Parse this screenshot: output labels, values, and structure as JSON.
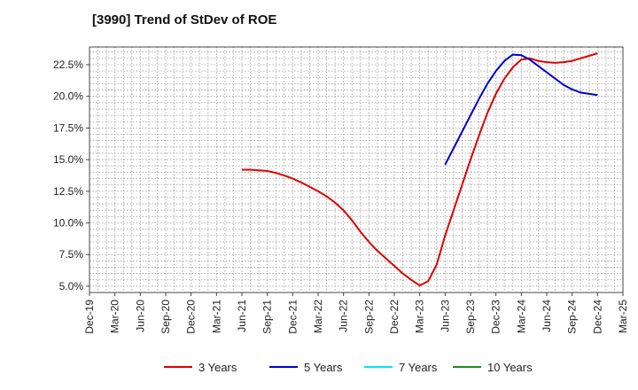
{
  "chart_data": {
    "type": "line",
    "title": "[3990]  Trend of StDev of ROE",
    "xlabel": "",
    "ylabel": "",
    "x_ticks": [
      "Dec-19",
      "Mar-20",
      "Jun-20",
      "Sep-20",
      "Dec-20",
      "Mar-21",
      "Jun-21",
      "Sep-21",
      "Dec-21",
      "Mar-22",
      "Jun-22",
      "Sep-22",
      "Dec-22",
      "Mar-23",
      "Jun-23",
      "Sep-23",
      "Dec-23",
      "Mar-24",
      "Jun-24",
      "Sep-24",
      "Dec-24",
      "Mar-25"
    ],
    "y_ticks": [
      5.0,
      7.5,
      10.0,
      12.5,
      15.0,
      17.5,
      20.0,
      22.5
    ],
    "y_tick_labels": [
      "5.0%",
      "7.5%",
      "10.0%",
      "12.5%",
      "15.0%",
      "17.5%",
      "20.0%",
      "22.5%"
    ],
    "ylim": [
      4.5,
      23.9
    ],
    "grid": true,
    "legend_position": "bottom",
    "series": [
      {
        "name": "3 Years",
        "color": "#dd0000",
        "points": [
          [
            "Jun-21",
            14.2
          ],
          [
            "Jul-21",
            14.2
          ],
          [
            "Aug-21",
            14.15
          ],
          [
            "Sep-21",
            14.1
          ],
          [
            "Oct-21",
            13.95
          ],
          [
            "Nov-21",
            13.75
          ],
          [
            "Dec-21",
            13.5
          ],
          [
            "Jan-22",
            13.2
          ],
          [
            "Feb-22",
            12.85
          ],
          [
            "Mar-22",
            12.5
          ],
          [
            "Apr-22",
            12.1
          ],
          [
            "May-22",
            11.6
          ],
          [
            "Jun-22",
            11.0
          ],
          [
            "Jul-22",
            10.2
          ],
          [
            "Aug-22",
            9.3
          ],
          [
            "Sep-22",
            8.5
          ],
          [
            "Oct-22",
            7.8
          ],
          [
            "Nov-22",
            7.2
          ],
          [
            "Dec-22",
            6.6
          ],
          [
            "Jan-23",
            6.0
          ],
          [
            "Feb-23",
            5.5
          ],
          [
            "Mar-23",
            5.05
          ],
          [
            "Apr-23",
            5.4
          ],
          [
            "May-23",
            6.7
          ],
          [
            "Jun-23",
            9.0
          ],
          [
            "Jul-23",
            11.0
          ],
          [
            "Aug-23",
            13.0
          ],
          [
            "Sep-23",
            15.0
          ],
          [
            "Oct-23",
            16.9
          ],
          [
            "Nov-23",
            18.7
          ],
          [
            "Dec-23",
            20.2
          ],
          [
            "Jan-24",
            21.4
          ],
          [
            "Feb-24",
            22.3
          ],
          [
            "Mar-24",
            22.9
          ],
          [
            "Apr-24",
            23.0
          ],
          [
            "May-24",
            22.8
          ],
          [
            "Jun-24",
            22.7
          ],
          [
            "Jul-24",
            22.65
          ],
          [
            "Aug-24",
            22.7
          ],
          [
            "Sep-24",
            22.8
          ],
          [
            "Oct-24",
            23.0
          ],
          [
            "Nov-24",
            23.2
          ],
          [
            "Dec-24",
            23.4
          ]
        ]
      },
      {
        "name": "5 Years",
        "color": "#0000cc",
        "points": [
          [
            "Jun-23",
            14.6
          ],
          [
            "Jul-23",
            15.9
          ],
          [
            "Aug-23",
            17.2
          ],
          [
            "Sep-23",
            18.5
          ],
          [
            "Oct-23",
            19.8
          ],
          [
            "Nov-23",
            21.0
          ],
          [
            "Dec-23",
            22.0
          ],
          [
            "Jan-24",
            22.8
          ],
          [
            "Feb-24",
            23.3
          ],
          [
            "Mar-24",
            23.25
          ],
          [
            "Apr-24",
            22.9
          ],
          [
            "May-24",
            22.4
          ],
          [
            "Jun-24",
            21.9
          ],
          [
            "Jul-24",
            21.4
          ],
          [
            "Aug-24",
            20.9
          ],
          [
            "Sep-24",
            20.55
          ],
          [
            "Oct-24",
            20.3
          ],
          [
            "Nov-24",
            20.2
          ],
          [
            "Dec-24",
            20.1
          ]
        ]
      },
      {
        "name": "7 Years",
        "color": "#00e5ee",
        "points": []
      },
      {
        "name": "10 Years",
        "color": "#228b22",
        "points": []
      }
    ]
  }
}
